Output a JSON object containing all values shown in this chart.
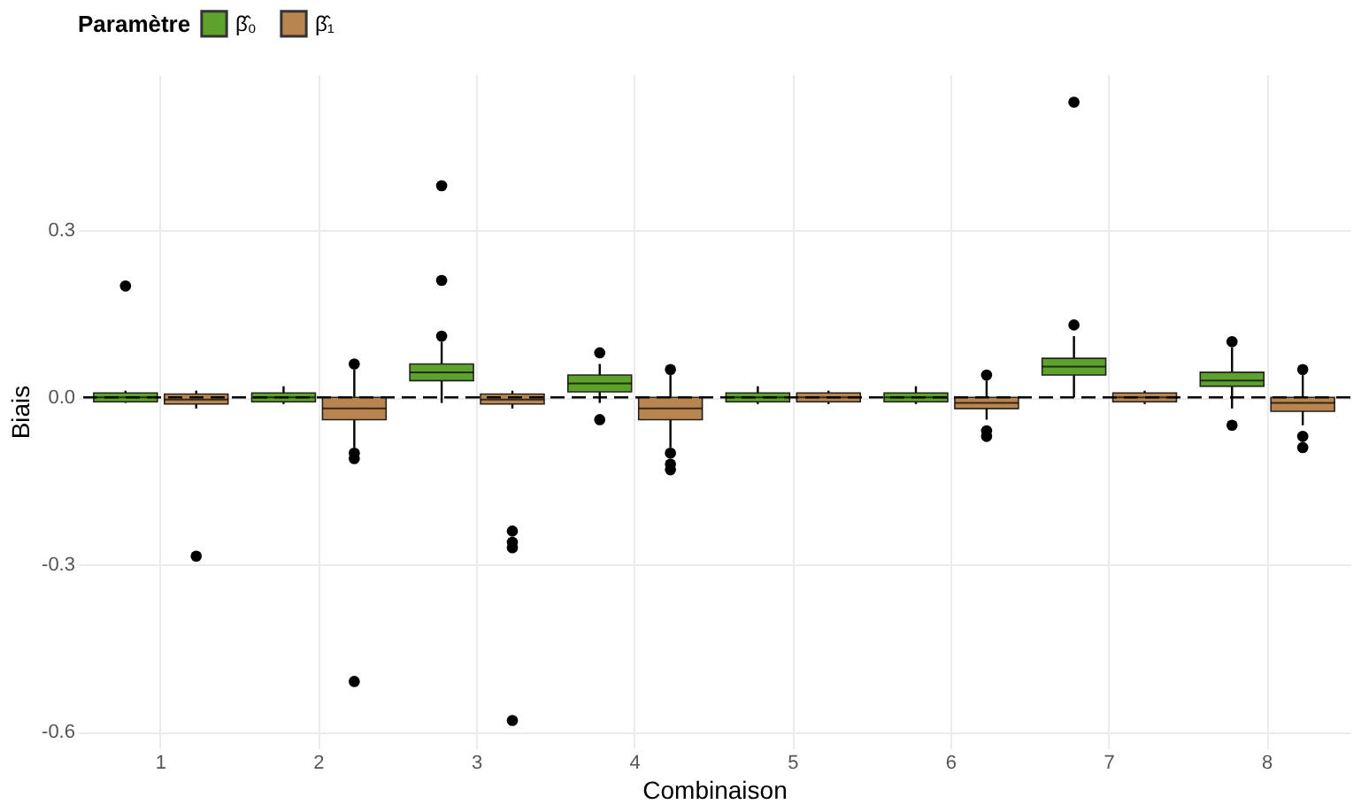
{
  "chart_data": {
    "type": "box",
    "xlabel": "Combinaison",
    "ylabel": "Biais",
    "legend_title": "Paramètre",
    "legend": "top",
    "grid": true,
    "categories": [
      "1",
      "2",
      "3",
      "4",
      "5",
      "6",
      "7",
      "8"
    ],
    "ylim": [
      -0.63,
      0.58
    ],
    "yticks": [
      -0.6,
      -0.3,
      {
        "value": 0,
        "label": "0.0"
      },
      0.3
    ],
    "ref_lines": [
      {
        "axis": "y",
        "value": 0,
        "label": null,
        "color": "#000000",
        "line_style": "dashed"
      }
    ],
    "series": [
      {
        "name": "β̂₀",
        "color": "#5fa22b",
        "boxes": [
          {
            "low": -0.01,
            "q1": -0.008,
            "median": 0.0,
            "q3": 0.008,
            "high": 0.012,
            "outliers": [
              0.2
            ]
          },
          {
            "low": -0.012,
            "q1": -0.008,
            "median": 0.0,
            "q3": 0.008,
            "high": 0.02
          },
          {
            "low": -0.01,
            "q1": 0.03,
            "median": 0.045,
            "q3": 0.06,
            "high": 0.1,
            "outliers": [
              0.11,
              0.21,
              0.38
            ]
          },
          {
            "low": -0.01,
            "q1": 0.01,
            "median": 0.025,
            "q3": 0.04,
            "high": 0.06,
            "outliers": [
              0.08,
              -0.04
            ]
          },
          {
            "low": -0.012,
            "q1": -0.008,
            "median": 0.0,
            "q3": 0.008,
            "high": 0.02
          },
          {
            "low": -0.012,
            "q1": -0.008,
            "median": 0.0,
            "q3": 0.008,
            "high": 0.02
          },
          {
            "low": 0.0,
            "q1": 0.04,
            "median": 0.055,
            "q3": 0.07,
            "high": 0.11,
            "outliers": [
              0.13,
              0.53
            ]
          },
          {
            "low": -0.02,
            "q1": 0.02,
            "median": 0.03,
            "q3": 0.045,
            "high": 0.09,
            "outliers": [
              0.1,
              -0.05
            ]
          }
        ]
      },
      {
        "name": "β̂₁",
        "color": "#b8844f",
        "boxes": [
          {
            "low": -0.02,
            "q1": -0.012,
            "median": -0.004,
            "q3": 0.006,
            "high": 0.012,
            "outliers": [
              -0.285
            ]
          },
          {
            "low": -0.09,
            "q1": -0.04,
            "median": -0.02,
            "q3": 0.0,
            "high": 0.05,
            "outliers": [
              0.06,
              -0.1,
              -0.11,
              -0.51
            ]
          },
          {
            "low": -0.02,
            "q1": -0.012,
            "median": -0.004,
            "q3": 0.006,
            "high": 0.012,
            "outliers": [
              -0.24,
              -0.26,
              -0.27,
              -0.58
            ]
          },
          {
            "low": -0.09,
            "q1": -0.04,
            "median": -0.02,
            "q3": 0.0,
            "high": 0.04,
            "outliers": [
              0.05,
              -0.1,
              -0.12,
              -0.13
            ]
          },
          {
            "low": -0.012,
            "q1": -0.008,
            "median": 0.0,
            "q3": 0.008,
            "high": 0.012
          },
          {
            "low": -0.04,
            "q1": -0.02,
            "median": -0.01,
            "q3": 0.0,
            "high": 0.03,
            "outliers": [
              0.04,
              -0.06,
              -0.07
            ]
          },
          {
            "low": -0.012,
            "q1": -0.008,
            "median": 0.0,
            "q3": 0.008,
            "high": 0.012
          },
          {
            "low": -0.05,
            "q1": -0.025,
            "median": -0.01,
            "q3": 0.0,
            "high": 0.04,
            "outliers": [
              0.05,
              -0.07,
              -0.09
            ]
          }
        ]
      }
    ]
  }
}
